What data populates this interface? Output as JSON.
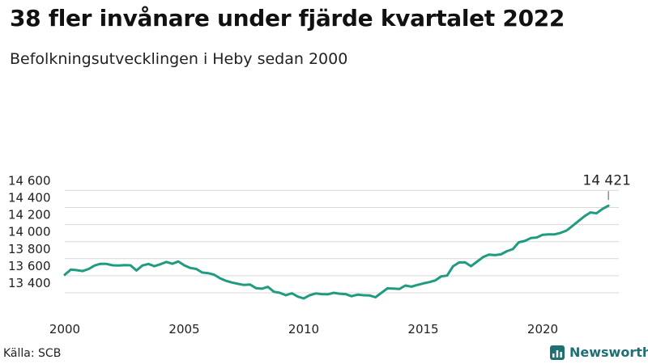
{
  "title": "38 fler invånare under fjärde kvartalet 2022",
  "subtitle": "Befolkningsutvecklingen i Heby sedan 2000",
  "source": "Källa: SCB",
  "brand": {
    "name": "Newsworthy",
    "icon": "bar-chart-icon",
    "color": "#1f6f73"
  },
  "colors": {
    "line": "#1f9b82",
    "grid": "#d9d9d9"
  },
  "chart_data": {
    "type": "line",
    "title": "38 fler invånare under fjärde kvartalet 2022",
    "subtitle": "Befolkningsutvecklingen i Heby sedan 2000",
    "xlabel": "",
    "ylabel": "",
    "xlim": [
      2000,
      2023.25
    ],
    "ylim": [
      13300,
      14650
    ],
    "x_ticks": [
      2000,
      2005,
      2010,
      2015,
      2020
    ],
    "x_tick_labels": [
      "2000",
      "2005",
      "2010",
      "2015",
      "2020"
    ],
    "y_ticks": [
      13400,
      13600,
      13800,
      14000,
      14200,
      14400,
      14600
    ],
    "y_tick_labels": [
      "13 400",
      "13 600",
      "13 800",
      "14 000",
      "14 200",
      "14 400",
      "14 600"
    ],
    "grid": true,
    "series": [
      {
        "x": [
          2000.0,
          2000.25,
          2000.5,
          2000.75,
          2001.0,
          2001.25,
          2001.5,
          2001.75,
          2002.0,
          2002.25,
          2002.5,
          2002.75,
          2003.0,
          2003.25,
          2003.5,
          2003.75,
          2004.0,
          2004.25,
          2004.5,
          2004.75,
          2005.0,
          2005.25,
          2005.5,
          2005.75,
          2006.0,
          2006.25,
          2006.5,
          2006.75,
          2007.0,
          2007.25,
          2007.5,
          2007.75,
          2008.0,
          2008.25,
          2008.5,
          2008.75,
          2009.0,
          2009.25,
          2009.5,
          2009.75,
          2010.0,
          2010.25,
          2010.5,
          2010.75,
          2011.0,
          2011.25,
          2011.5,
          2011.75,
          2012.0,
          2012.25,
          2012.5,
          2012.75,
          2013.0,
          2013.25,
          2013.5,
          2013.75,
          2014.0,
          2014.25,
          2014.5,
          2014.75,
          2015.0,
          2015.25,
          2015.5,
          2015.75,
          2016.0,
          2016.25,
          2016.5,
          2016.75,
          2017.0,
          2017.25,
          2017.5,
          2017.75,
          2018.0,
          2018.25,
          2018.5,
          2018.75,
          2019.0,
          2019.25,
          2019.5,
          2019.75,
          2020.0,
          2020.25,
          2020.5,
          2020.75,
          2021.0,
          2021.25,
          2021.5,
          2021.75,
          2022.0,
          2022.25,
          2022.5,
          2022.75
        ],
        "values": [
          13612,
          13672,
          13665,
          13655,
          13680,
          13720,
          13740,
          13738,
          13722,
          13720,
          13725,
          13722,
          13662,
          13720,
          13738,
          13712,
          13735,
          13762,
          13740,
          13768,
          13722,
          13692,
          13680,
          13638,
          13630,
          13612,
          13570,
          13540,
          13520,
          13505,
          13492,
          13498,
          13455,
          13448,
          13470,
          13412,
          13400,
          13372,
          13395,
          13355,
          13335,
          13372,
          13392,
          13385,
          13382,
          13400,
          13390,
          13385,
          13360,
          13378,
          13372,
          13370,
          13348,
          13400,
          13452,
          13450,
          13445,
          13485,
          13472,
          13492,
          13510,
          13525,
          13545,
          13592,
          13602,
          13712,
          13755,
          13758,
          13712,
          13765,
          13818,
          13848,
          13842,
          13850,
          13888,
          13912,
          13992,
          14008,
          14042,
          14048,
          14080,
          14085,
          14085,
          14102,
          14130,
          14185,
          14242,
          14298,
          14342,
          14332,
          14383,
          14421
        ]
      }
    ],
    "annotation": {
      "label": "14 421",
      "x": 2022.75,
      "y": 14421
    }
  }
}
